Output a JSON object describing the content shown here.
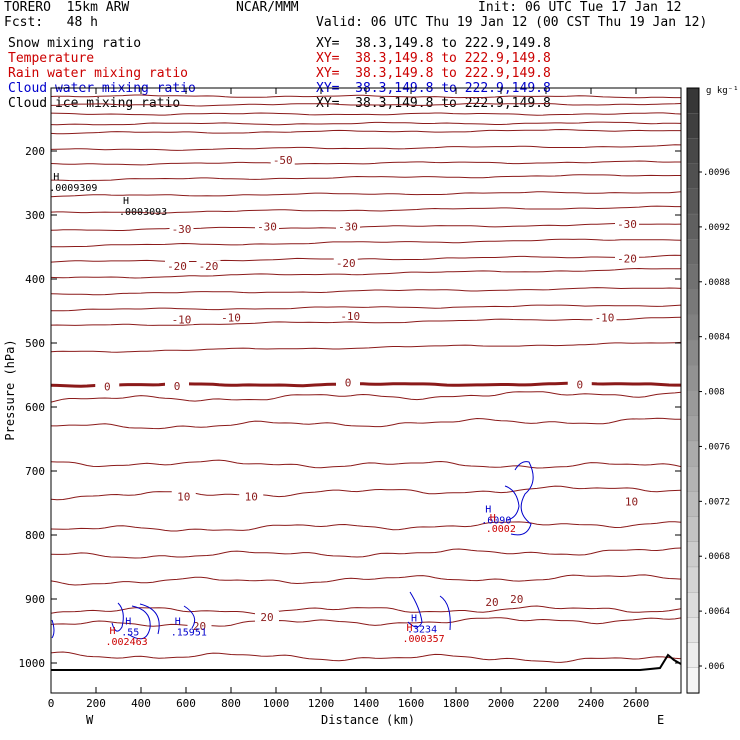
{
  "header": {
    "model": "TORERO  15km ARW",
    "org": "NCAR/MMM",
    "init": "Init: 06 UTC Tue 17 Jan 12",
    "fcst": "Fcst:   48 h",
    "valid": "Valid: 06 UTC Thu 19 Jan 12 (00 CST Thu 19 Jan 12)",
    "fields": [
      {
        "label": "Snow mixing ratio",
        "xy": "XY=  38.3,149.8 to 222.9,149.8",
        "color": "#000000"
      },
      {
        "label": "Temperature",
        "xy": "XY=  38.3,149.8 to 222.9,149.8",
        "color": "#cc0000"
      },
      {
        "label": "Rain water mixing ratio",
        "xy": "XY=  38.3,149.8 to 222.9,149.8",
        "color": "#cc0000"
      },
      {
        "label": "Cloud water mixing ratio",
        "xy": "XY=  38.3,149.8 to 222.9,149.8",
        "color": "#0000cc"
      },
      {
        "label": "Cloud ice mixing ratio",
        "xy": "XY=  38.3,149.8 to 222.9,149.8",
        "color": "#000000"
      }
    ]
  },
  "chart_data": {
    "type": "line",
    "xlabel": "Distance (km)",
    "ylabel": "Pressure (hPa)",
    "xlim": [
      0,
      2800
    ],
    "ylim": [
      1050,
      100
    ],
    "x_ticks": [
      0,
      200,
      400,
      600,
      800,
      1000,
      1200,
      1400,
      1600,
      1800,
      2000,
      2200,
      2400,
      2600
    ],
    "y_ticks": [
      200,
      300,
      400,
      500,
      600,
      700,
      800,
      900,
      1000
    ],
    "x_end_labels": {
      "left": "W",
      "right": "E"
    },
    "colorbar": {
      "unit": "g kg⁻¹",
      "ticks": [
        ".0096",
        ".0092",
        ".0088",
        ".0084",
        ".008",
        ".0076",
        ".0072",
        ".0068",
        ".0064",
        ".006"
      ]
    },
    "isotherms": [
      {
        "value": -50,
        "labels": [
          {
            "x": 1030,
            "p": 214
          }
        ]
      },
      {
        "value": -30,
        "labels": [
          {
            "x": 580,
            "p": 322
          },
          {
            "x": 960,
            "p": 318
          },
          {
            "x": 1320,
            "p": 318
          },
          {
            "x": 2560,
            "p": 314
          }
        ]
      },
      {
        "value": -20,
        "labels": [
          {
            "x": 560,
            "p": 380
          },
          {
            "x": 700,
            "p": 380
          },
          {
            "x": 1310,
            "p": 375
          },
          {
            "x": 2560,
            "p": 368
          }
        ]
      },
      {
        "value": -10,
        "labels": [
          {
            "x": 580,
            "p": 463
          },
          {
            "x": 800,
            "p": 460
          },
          {
            "x": 1330,
            "p": 458
          },
          {
            "x": 2460,
            "p": 460
          }
        ]
      },
      {
        "value": 0,
        "labels": [
          {
            "x": 250,
            "p": 568
          },
          {
            "x": 560,
            "p": 567
          },
          {
            "x": 1320,
            "p": 562
          },
          {
            "x": 2350,
            "p": 565
          }
        ]
      },
      {
        "value": 10,
        "labels": [
          {
            "x": 590,
            "p": 740
          },
          {
            "x": 890,
            "p": 740
          },
          {
            "x": 2580,
            "p": 748
          }
        ]
      },
      {
        "value": 20,
        "labels": [
          {
            "x": 660,
            "p": 942
          },
          {
            "x": 960,
            "p": 928
          },
          {
            "x": 1960,
            "p": 905
          },
          {
            "x": 2070,
            "p": 900
          }
        ]
      }
    ],
    "extrema": [
      {
        "mark": "H",
        "value": ".0009309",
        "x": 10,
        "p": 245,
        "color": "#000000"
      },
      {
        "mark": "H",
        "value": ".0003093",
        "x": 320,
        "p": 283,
        "color": "#000000"
      },
      {
        "mark": "H",
        "value": ".55",
        "x": 330,
        "p": 940,
        "color": "#0000cc"
      },
      {
        "mark": "H",
        "value": ".002463",
        "x": 260,
        "p": 955,
        "color": "#cc0000"
      },
      {
        "mark": "H",
        "value": ".15951",
        "x": 550,
        "p": 940,
        "color": "#0000cc"
      },
      {
        "mark": "H",
        "value": ".3234",
        "x": 1600,
        "p": 935,
        "color": "#0000cc"
      },
      {
        "mark": "H",
        "value": ".000357",
        "x": 1580,
        "p": 950,
        "color": "#cc0000"
      },
      {
        "mark": "H",
        "value": ".6090",
        "x": 1930,
        "p": 765,
        "color": "#0000cc"
      },
      {
        "mark": "H",
        "value": ".0002",
        "x": 1950,
        "p": 778,
        "color": "#cc0000"
      }
    ]
  }
}
